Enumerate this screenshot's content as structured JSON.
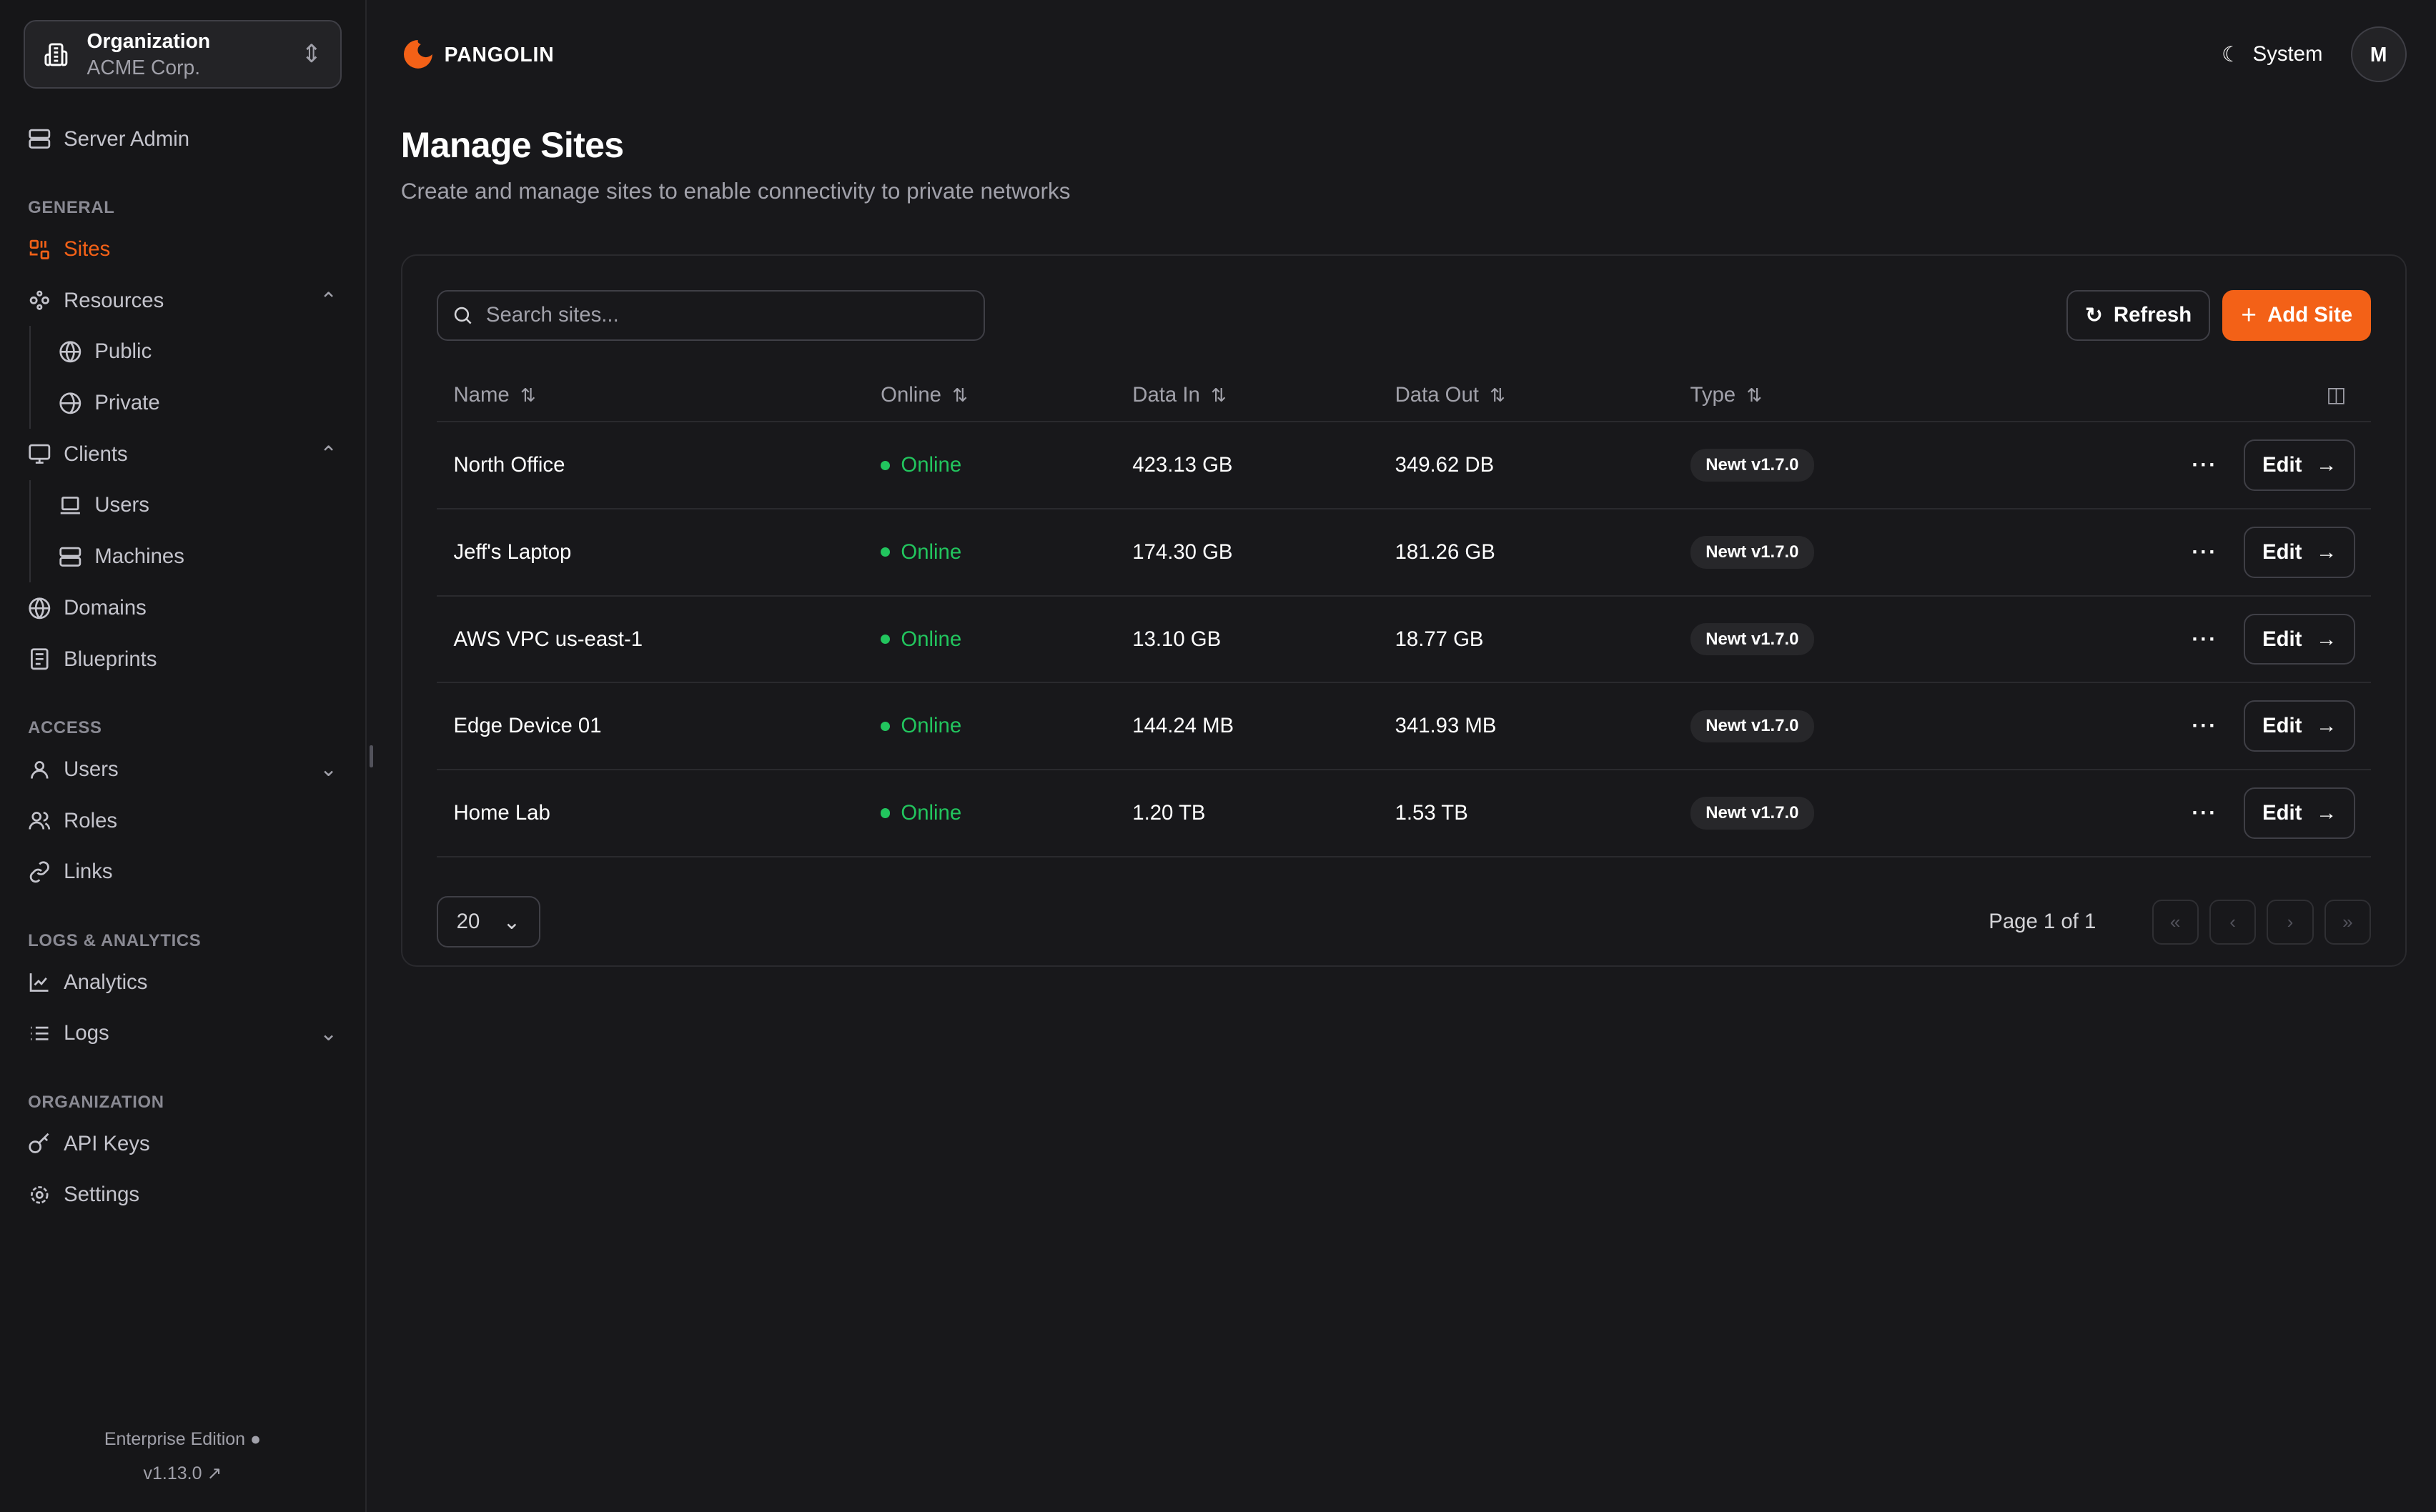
{
  "org": {
    "label": "Organization",
    "name": "ACME Corp."
  },
  "sidebar": {
    "server_admin": "Server Admin",
    "sections": {
      "general": "GENERAL",
      "access": "ACCESS",
      "logs": "LOGS & ANALYTICS",
      "organization": "ORGANIZATION"
    },
    "items": {
      "sites": "Sites",
      "resources": "Resources",
      "public": "Public",
      "private": "Private",
      "clients": "Clients",
      "users_client": "Users",
      "machines": "Machines",
      "domains": "Domains",
      "blueprints": "Blueprints",
      "users": "Users",
      "roles": "Roles",
      "links": "Links",
      "analytics": "Analytics",
      "logs": "Logs",
      "api_keys": "API Keys",
      "settings": "Settings"
    },
    "footer": {
      "edition": "Enterprise Edition",
      "version": "v1.13.0"
    }
  },
  "header": {
    "brand": "PANGOLIN",
    "theme": "System",
    "avatar": "M"
  },
  "page": {
    "title": "Manage Sites",
    "description": "Create and manage sites to enable connectivity to private networks"
  },
  "toolbar": {
    "search_placeholder": "Search sites...",
    "refresh": "Refresh",
    "add": "Add Site"
  },
  "table": {
    "columns": [
      "Name",
      "Online",
      "Data In",
      "Data Out",
      "Type"
    ],
    "rows": [
      {
        "name": "North Office",
        "status": "Online",
        "data_in": "423.13 GB",
        "data_out": "349.62 DB",
        "type": "Newt v1.7.0",
        "edit": "Edit"
      },
      {
        "name": "Jeff's Laptop",
        "status": "Online",
        "data_in": "174.30 GB",
        "data_out": "181.26 GB",
        "type": "Newt v1.7.0",
        "edit": "Edit"
      },
      {
        "name": "AWS VPC us-east-1",
        "status": "Online",
        "data_in": "13.10 GB",
        "data_out": "18.77 GB",
        "type": "Newt v1.7.0",
        "edit": "Edit"
      },
      {
        "name": "Edge Device 01",
        "status": "Online",
        "data_in": "144.24 MB",
        "data_out": "341.93 MB",
        "type": "Newt v1.7.0",
        "edit": "Edit"
      },
      {
        "name": "Home Lab",
        "status": "Online",
        "data_in": "1.20 TB",
        "data_out": "1.53 TB",
        "type": "Newt v1.7.0",
        "edit": "Edit"
      }
    ]
  },
  "pagination": {
    "page_size": "20",
    "page_info": "Page 1 of 1"
  },
  "colors": {
    "accent": "#f36117",
    "online": "#22c55e",
    "background": "#18181b"
  }
}
